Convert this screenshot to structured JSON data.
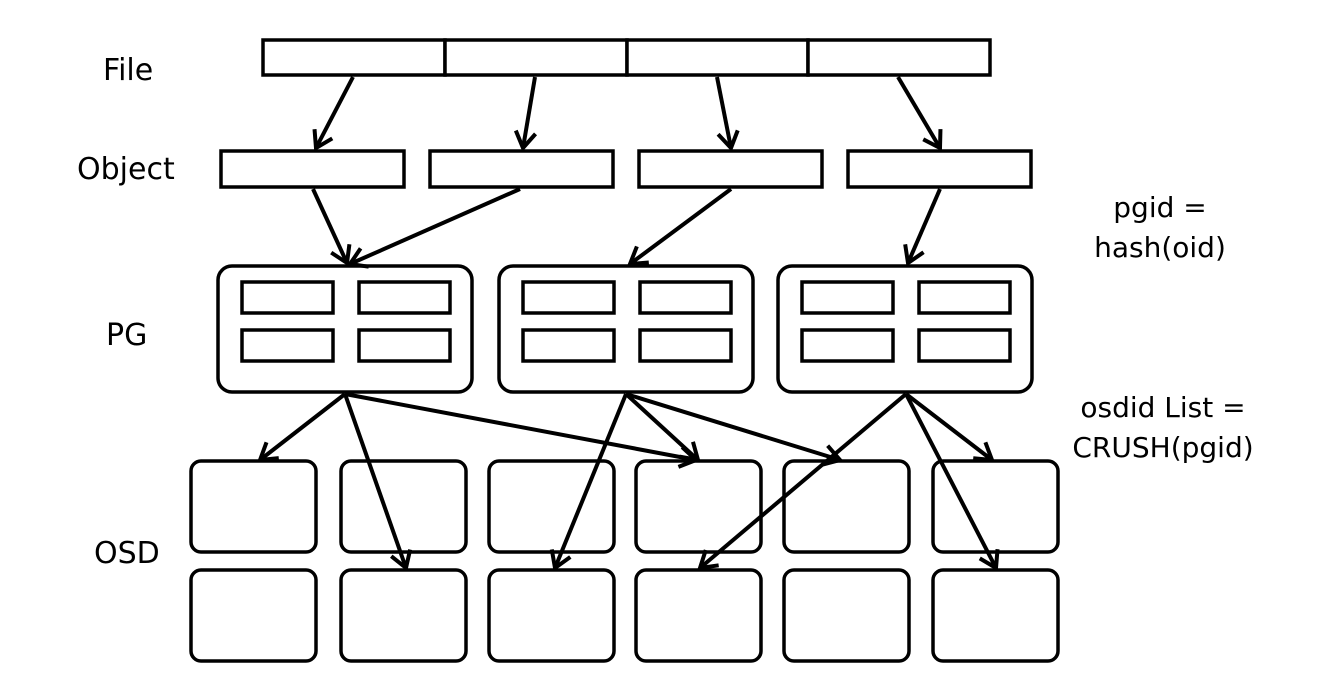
{
  "labels": {
    "file": "File",
    "object": "Object",
    "pg": "PG",
    "osd": "OSD"
  },
  "formulas": {
    "pgid_line1": "pgid =",
    "pgid_line2": "hash(oid)",
    "osd_line1": "osdid List =",
    "osd_line2": "CRUSH(pgid)"
  },
  "colors": {
    "stroke": "#000000",
    "fill": "#ffffff"
  }
}
